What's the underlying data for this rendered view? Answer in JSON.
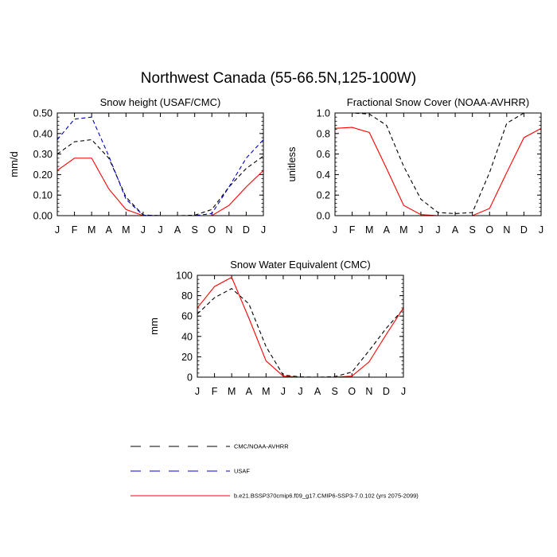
{
  "title": "Northwest Canada (55-66.5N,125-100W)",
  "chart_data": [
    {
      "type": "line",
      "title": "Snow height (USAF/CMC)",
      "ylabel": "mm/d",
      "xlabel": "",
      "categories": [
        "J",
        "F",
        "M",
        "A",
        "M",
        "J",
        "J",
        "A",
        "S",
        "O",
        "N",
        "D",
        "J"
      ],
      "ylim": [
        0,
        0.5
      ],
      "yticks": [
        "0.00",
        "0.10",
        "0.20",
        "0.30",
        "0.40",
        "0.50"
      ],
      "ytick_values": [
        0,
        0.1,
        0.2,
        0.3,
        0.4,
        0.5
      ],
      "series": [
        {
          "name": "CMC/NOAA-AVHRR",
          "color": "#000000",
          "dash": true,
          "values": [
            0.3,
            0.36,
            0.37,
            0.28,
            0.09,
            0.003,
            0.0,
            0.0,
            0.002,
            0.03,
            0.14,
            0.23,
            0.29
          ]
        },
        {
          "name": "USAF",
          "color": "#0000cc",
          "dash": true,
          "values": [
            0.37,
            0.47,
            0.48,
            0.29,
            0.08,
            0.002,
            0.0,
            0.0,
            0.0,
            0.01,
            0.14,
            0.28,
            0.37
          ]
        },
        {
          "name": "b.e21.BSSP370cmip6.f09_g17.CMIP6-SSP3-7.0.102 (yrs 2075-2099)",
          "color": "#ff0000",
          "dash": false,
          "values": [
            0.22,
            0.28,
            0.28,
            0.13,
            0.03,
            0.0,
            0.0,
            0.0,
            0.0,
            0.0,
            0.05,
            0.14,
            0.22
          ]
        }
      ]
    },
    {
      "type": "line",
      "title": "Fractional Snow Cover (NOAA-AVHRR)",
      "ylabel": "unitless",
      "xlabel": "",
      "categories": [
        "J",
        "F",
        "M",
        "A",
        "M",
        "J",
        "J",
        "A",
        "S",
        "O",
        "N",
        "D",
        "J"
      ],
      "ylim": [
        0,
        1.0
      ],
      "yticks": [
        "0.0",
        "0.2",
        "0.4",
        "0.6",
        "0.8",
        "1.0"
      ],
      "ytick_values": [
        0,
        0.2,
        0.4,
        0.6,
        0.8,
        1.0
      ],
      "series": [
        {
          "name": "CMC/NOAA-AVHRR",
          "color": "#000000",
          "dash": true,
          "values": [
            1.0,
            1.0,
            0.99,
            0.88,
            0.48,
            0.16,
            0.03,
            0.02,
            0.03,
            0.42,
            0.9,
            1.0,
            1.0
          ]
        },
        {
          "name": "b.e21.BSSP370cmip6.f09_g17.CMIP6-SSP3-7.0.102 (yrs 2075-2099)",
          "color": "#ff0000",
          "dash": false,
          "values": [
            0.85,
            0.86,
            0.81,
            0.46,
            0.1,
            0.01,
            0.0,
            0.0,
            0.0,
            0.07,
            0.42,
            0.76,
            0.85
          ]
        }
      ]
    },
    {
      "type": "line",
      "title": "Snow Water Equivalent (CMC)",
      "ylabel": "mm",
      "xlabel": "",
      "categories": [
        "J",
        "F",
        "M",
        "A",
        "M",
        "J",
        "J",
        "A",
        "S",
        "O",
        "N",
        "D",
        "J"
      ],
      "ylim": [
        0,
        100
      ],
      "yticks": [
        "0",
        "20",
        "40",
        "60",
        "80",
        "100"
      ],
      "ytick_values": [
        0,
        20,
        40,
        60,
        80,
        100
      ],
      "series": [
        {
          "name": "CMC/NOAA-AVHRR",
          "color": "#000000",
          "dash": true,
          "values": [
            62,
            78,
            87,
            72,
            30,
            2,
            0.3,
            0.0,
            0.5,
            5,
            26,
            48,
            67
          ]
        },
        {
          "name": "b.e21.BSSP370cmip6.f09_g17.CMIP6-SSP3-7.0.102 (yrs 2075-2099)",
          "color": "#ff0000",
          "dash": false,
          "values": [
            68,
            89,
            98,
            58,
            16,
            1,
            0.0,
            0.0,
            0.0,
            1,
            15,
            42,
            68
          ]
        }
      ]
    }
  ],
  "legend": [
    {
      "label": "CMC/NOAA-AVHRR",
      "color": "#000000",
      "dash": true
    },
    {
      "label": "USAF",
      "color": "#0000cc",
      "dash": true
    },
    {
      "label": "b.e21.BSSP370cmip6.f09_g17.CMIP6-SSP3-7.0.102 (yrs 2075-2099)",
      "color": "#ff0000",
      "dash": false
    }
  ]
}
